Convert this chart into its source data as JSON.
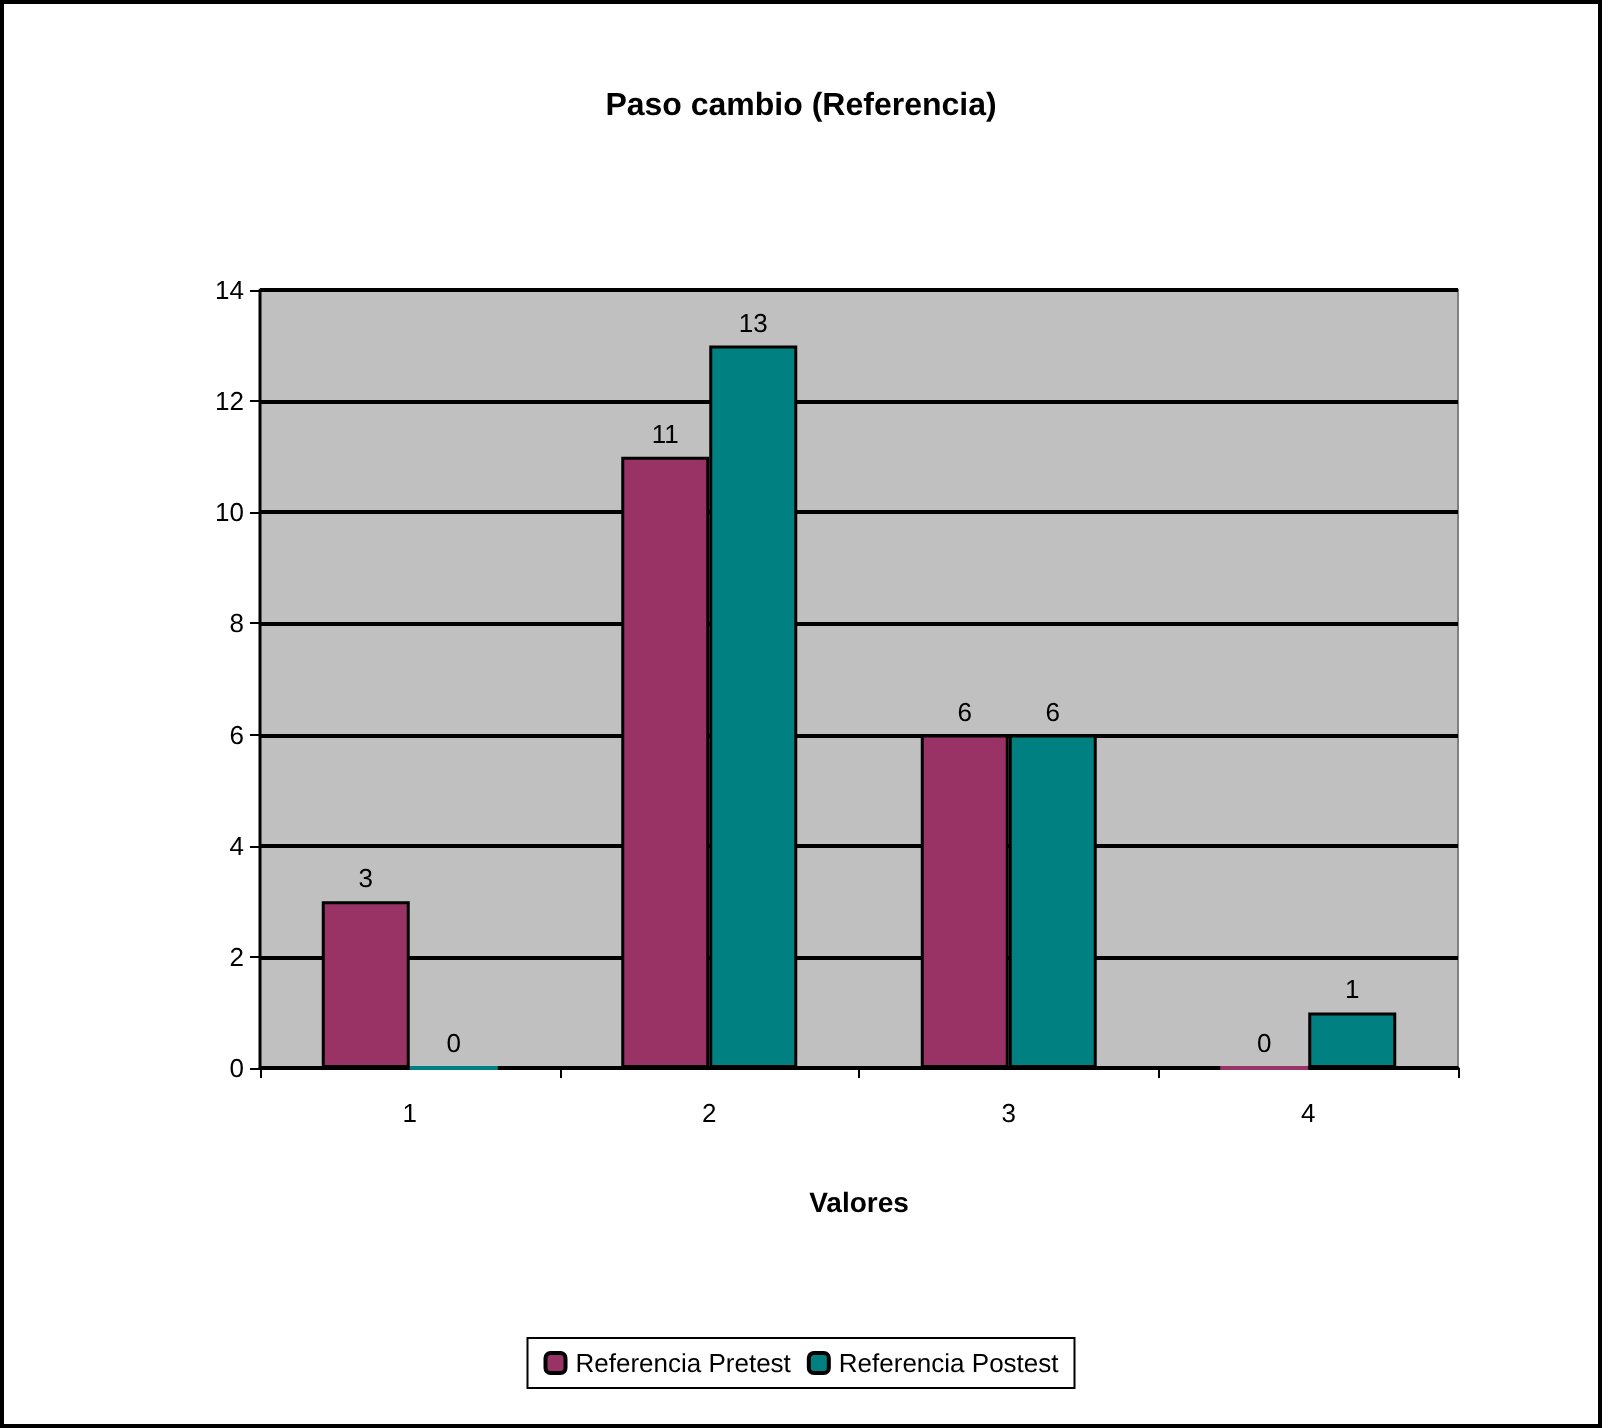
{
  "chart_data": {
    "type": "bar",
    "title": "Paso cambio (Referencia)",
    "xlabel": "Valores",
    "categories": [
      "1",
      "2",
      "3",
      "4"
    ],
    "series": [
      {
        "name": "Referencia Pretest",
        "color": "#993366",
        "values": [
          3,
          11,
          6,
          0
        ]
      },
      {
        "name": "Referencia Postest",
        "color": "#008080",
        "values": [
          0,
          13,
          6,
          1
        ]
      }
    ],
    "ylim": [
      0,
      14
    ],
    "yticks": [
      0,
      2,
      4,
      6,
      8,
      10,
      12,
      14
    ],
    "grid": "y",
    "legend": "bottom",
    "data_labels": true
  }
}
